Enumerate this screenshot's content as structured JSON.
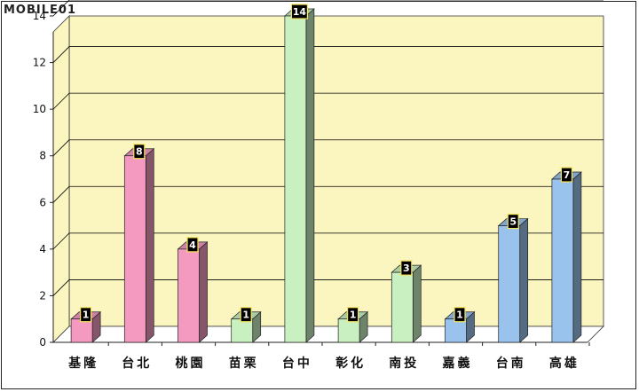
{
  "watermark": "MOBILE01",
  "colors": {
    "plot_bg": "#fbf5c0",
    "grid": "#000000",
    "label_box": "#000000",
    "label_border": "#f5e25a"
  },
  "chart_data": {
    "type": "bar",
    "categories": [
      "基隆",
      "台北",
      "桃園",
      "苗栗",
      "台中",
      "彰化",
      "南投",
      "嘉義",
      "台南",
      "高雄"
    ],
    "values": [
      1,
      8,
      4,
      1,
      14,
      1,
      3,
      1,
      5,
      7
    ],
    "bar_colors": [
      "#f49ac1",
      "#f49ac1",
      "#f49ac1",
      "#c8f0c0",
      "#c8f0c0",
      "#c8f0c0",
      "#c8f0c0",
      "#99c2ec",
      "#99c2ec",
      "#99c2ec"
    ],
    "title": "",
    "xlabel": "",
    "ylabel": "",
    "ylim": [
      0,
      14
    ],
    "yticks": [
      0,
      2,
      4,
      6,
      8,
      10,
      12,
      14
    ],
    "grid": true,
    "data_labels": true
  }
}
